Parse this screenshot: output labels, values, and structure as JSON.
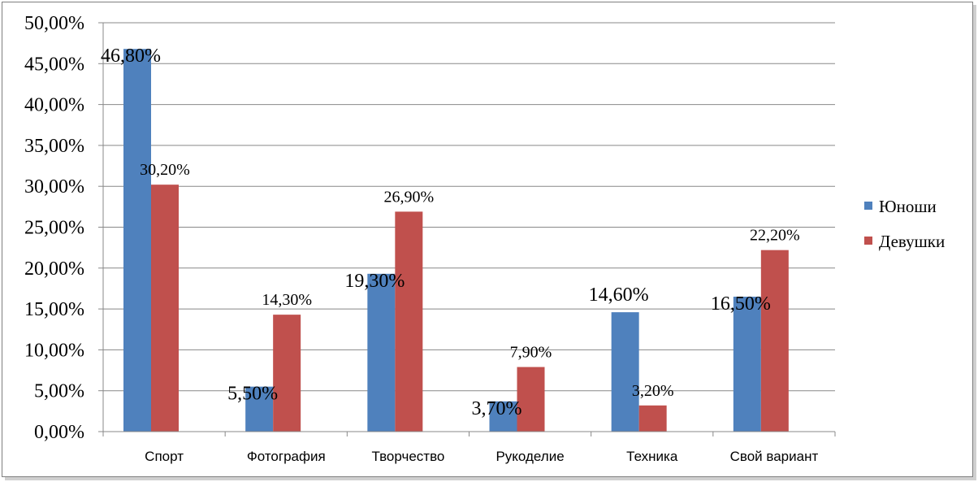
{
  "chart_data": {
    "type": "bar",
    "categories": [
      "Спорт",
      "Фотография",
      "Творчество",
      "Рукоделие",
      "Техника",
      "Свой вариант"
    ],
    "series": [
      {
        "name": "Юноши",
        "color": "#4f81bd",
        "values": [
          46.8,
          5.5,
          19.3,
          3.7,
          14.6,
          16.5
        ],
        "labels": [
          "46,80%",
          "5,50%",
          "19,30%",
          "3,70%",
          "14,60%",
          "16,50%"
        ]
      },
      {
        "name": "Девушки",
        "color": "#c0504d",
        "values": [
          30.2,
          14.3,
          26.9,
          7.9,
          3.2,
          22.2
        ],
        "labels": [
          "30,20%",
          "14,30%",
          "26,90%",
          "7,90%",
          "3,20%",
          "22,20%"
        ]
      }
    ],
    "yticks": [
      "0,00%",
      "5,00%",
      "10,00%",
      "15,00%",
      "20,00%",
      "25,00%",
      "30,00%",
      "35,00%",
      "40,00%",
      "45,00%",
      "50,00%"
    ],
    "ylim": [
      0,
      50
    ],
    "grid": true,
    "legend_position": "right",
    "title": "",
    "xlabel": "",
    "ylabel": ""
  }
}
